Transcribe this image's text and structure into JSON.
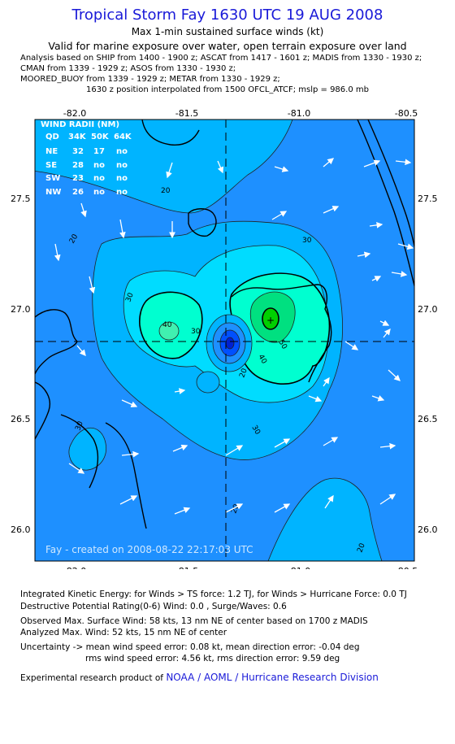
{
  "title": "Tropical Storm Fay 1630 UTC 19 AUG 2008",
  "subtitle": "Max 1-min sustained surface winds (kt)",
  "valid": "Valid for marine exposure over water, open terrain exposure over land",
  "analysis_lines": [
    "Analysis based on  SHIP from 1400 - 1900 z;  ASCAT from 1417 - 1601 z;  MADIS from 1330 - 1930 z;",
    "CMAN from 1339 - 1929 z;  ASOS from 1330 - 1930 z;",
    "MOORED_BUOY from 1339 - 1929 z;  METAR from 1330 - 1929 z;"
  ],
  "center_line": "1630 z position interpolated from 1500 OFCL_ATCF; mslp = 986.0 mb",
  "map": {
    "lon_ticks": [
      "-82.0",
      "-81.5",
      "-81.0",
      "-80.5"
    ],
    "lat_ticks": [
      "27.5",
      "27.0",
      "26.5",
      "26.0"
    ],
    "contour_labels": [
      "20",
      "20",
      "30",
      "30",
      "30",
      "40",
      "40",
      "50",
      "20",
      "20",
      "20",
      "30",
      "30"
    ],
    "colors": {
      "frame_bg": "#1e90ff",
      "level20": "#00b4ff",
      "level30": "#00dcff",
      "level40": "#00ffd0",
      "level50": "#00e080",
      "level60": "#00d000",
      "inner_blue": "#0050ff",
      "land": "#00000000"
    },
    "wind_radii": {
      "title": "WIND RADII (NM)",
      "header": [
        "QD",
        "34K",
        "50K",
        "64K"
      ],
      "rows": [
        [
          "NE",
          "32",
          "17",
          "no"
        ],
        [
          "SE",
          "28",
          "no",
          "no"
        ],
        [
          "SW",
          "23",
          "no",
          "no"
        ],
        [
          "NW",
          "26",
          "no",
          "no"
        ]
      ]
    },
    "created": "Fay - created on 2008-08-22 22:17:03 UTC"
  },
  "footer": {
    "ike": "Integrated Kinetic Energy:  for Winds > TS force: 1.2 TJ,  for Winds > Hurricane Force: 0.0 TJ",
    "dpr": "Destructive Potential Rating(0-6)   Wind: 0.0 , Surge/Waves: 0.6",
    "obs_max": "Observed Max. Surface Wind: 58 kts, 13 nm NE of center based on 1700 z MADIS",
    "analyzed_max": "Analyzed Max. Wind: 52 kts, 15 nm NE of center",
    "uncertainty1": "Uncertainty -> mean wind speed error: 0.08 kt,   mean direction error:  -0.04 deg",
    "uncertainty2": "rms wind speed error: 4.56 kt,   rms direction error:  9.59 deg",
    "credit_prefix": "Experimental research product of ",
    "credit_link": "NOAA / AOML / Hurricane Research Division"
  }
}
